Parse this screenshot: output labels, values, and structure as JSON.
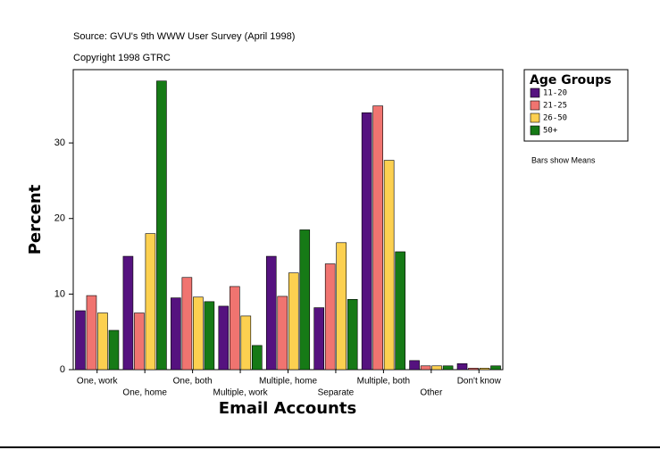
{
  "chart_data": {
    "type": "bar",
    "title": "Source: GVU's 9th WWW User Survey (April 1998)",
    "subtitle": "Copyright 1998 GTRC",
    "x_label": "Email Accounts",
    "y_label": "Percent",
    "annotation": "Bars show Means",
    "legend_title": "Age Groups",
    "legend": "right",
    "categories": [
      "One, work",
      "One, home",
      "One, both",
      "Multiple, work",
      "Multiple, home",
      "Separate",
      "Multiple, both",
      "Other",
      "Don't know"
    ],
    "series": [
      {
        "name": "11-20",
        "color": "#55127f",
        "values": [
          7.8,
          15.0,
          9.5,
          8.4,
          15.0,
          8.2,
          34.0,
          1.2,
          0.8
        ]
      },
      {
        "name": "21-25",
        "color": "#f07470",
        "values": [
          9.8,
          7.5,
          12.2,
          11.0,
          9.7,
          14.0,
          34.9,
          0.5,
          0.2
        ]
      },
      {
        "name": "26-50",
        "color": "#fcd050",
        "values": [
          7.5,
          18.0,
          9.6,
          7.1,
          12.8,
          16.8,
          27.7,
          0.5,
          0.2
        ]
      },
      {
        "name": "50+",
        "color": "#167a16",
        "values": [
          5.2,
          38.2,
          9.0,
          3.2,
          18.5,
          9.3,
          15.6,
          0.5,
          0.5
        ]
      }
    ],
    "ylim": [
      0,
      39.7
    ],
    "yticks": [
      0,
      10,
      20,
      30
    ]
  }
}
